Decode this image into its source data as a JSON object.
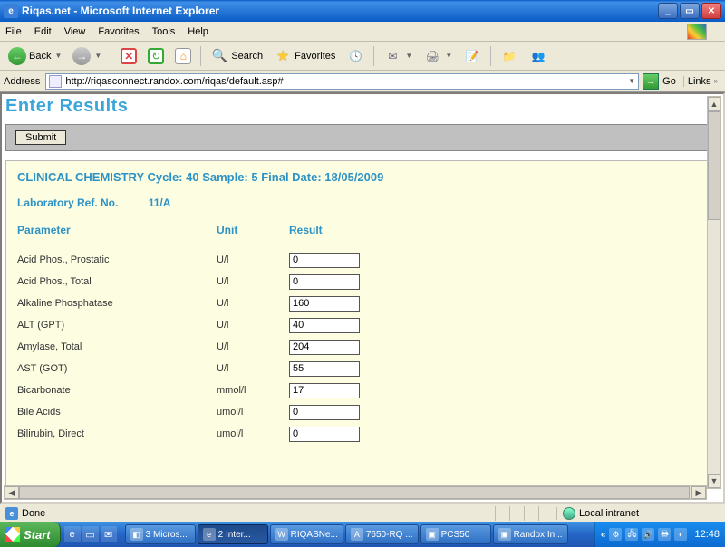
{
  "window": {
    "title": "Riqas.net - Microsoft Internet Explorer"
  },
  "menubar": {
    "file": "File",
    "edit": "Edit",
    "view": "View",
    "favorites": "Favorites",
    "tools": "Tools",
    "help": "Help"
  },
  "toolbar": {
    "back": "Back",
    "search": "Search",
    "favorites": "Favorites"
  },
  "address": {
    "label": "Address",
    "url": "http://riqasconnect.randox.com/riqas/default.asp#",
    "go": "Go",
    "links": "Links"
  },
  "page": {
    "title": "Enter Results",
    "submit": "Submit",
    "header_line": "CLINICAL CHEMISTRY Cycle: 40 Sample: 5   Final Date: 18/05/2009",
    "labref_label": "Laboratory Ref. No.",
    "labref_value": "11/A",
    "col_parameter": "Parameter",
    "col_unit": "Unit",
    "col_result": "Result",
    "rows": [
      {
        "param": "Acid Phos., Prostatic",
        "unit": "U/l",
        "result": "0"
      },
      {
        "param": "Acid Phos., Total",
        "unit": "U/l",
        "result": "0"
      },
      {
        "param": "Alkaline Phosphatase",
        "unit": "U/l",
        "result": "160"
      },
      {
        "param": "ALT (GPT)",
        "unit": "U/l",
        "result": "40"
      },
      {
        "param": "Amylase, Total",
        "unit": "U/l",
        "result": "204"
      },
      {
        "param": "AST (GOT)",
        "unit": "U/l",
        "result": "55"
      },
      {
        "param": "Bicarbonate",
        "unit": "mmol/l",
        "result": "17"
      },
      {
        "param": "Bile Acids",
        "unit": "umol/l",
        "result": "0"
      },
      {
        "param": "Bilirubin, Direct",
        "unit": "umol/l",
        "result": "0"
      }
    ]
  },
  "status": {
    "done": "Done",
    "zone": "Local intranet"
  },
  "taskbar": {
    "start": "Start",
    "tasks": [
      {
        "label": "3 Micros...",
        "icon": "◧"
      },
      {
        "label": "2 Inter...",
        "icon": "e",
        "active": true
      },
      {
        "label": "RIQASNe...",
        "icon": "W"
      },
      {
        "label": "7650-RQ ...",
        "icon": "A"
      },
      {
        "label": "PCS50",
        "icon": "▣"
      },
      {
        "label": "Randox In...",
        "icon": "▣"
      }
    ],
    "clock": "12:48"
  }
}
